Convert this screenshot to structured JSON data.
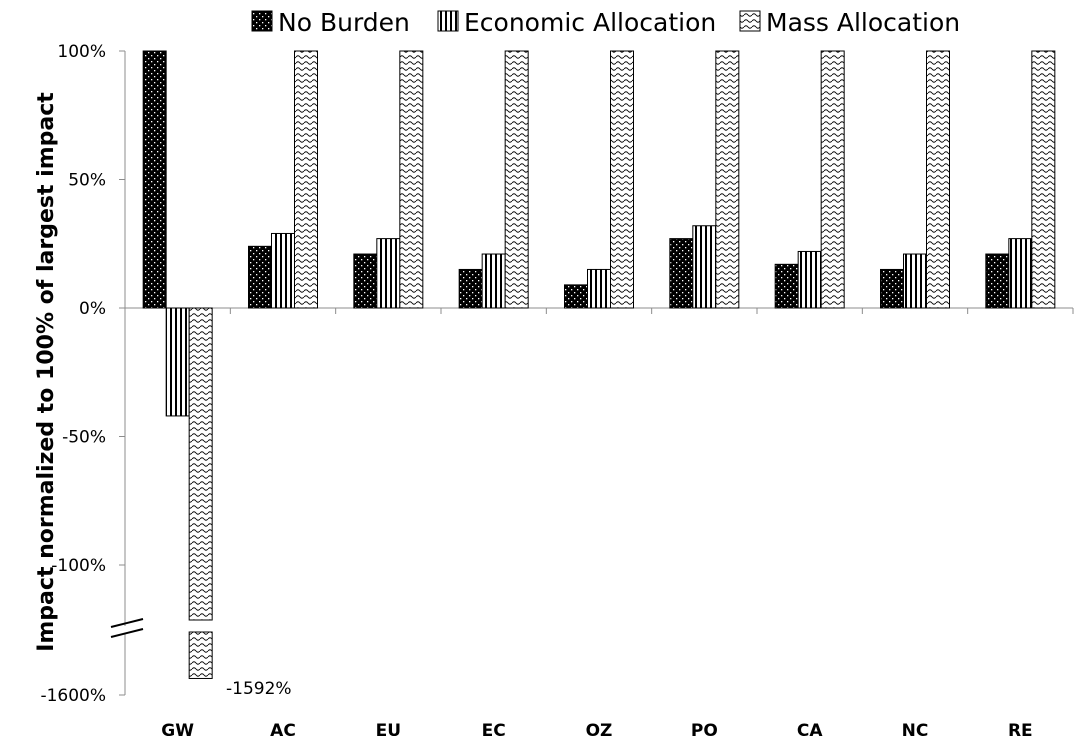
{
  "chart_data": {
    "type": "bar",
    "ylabel": "Impact normalized to 100% of largest impact",
    "xlabel": "",
    "categories": [
      "GW",
      "AC",
      "EU",
      "EC",
      "OZ",
      "PO",
      "CA",
      "NC",
      "RE"
    ],
    "series": [
      {
        "name": "No Burden",
        "pattern": "dots",
        "values": [
          100,
          24,
          21,
          15,
          9,
          27,
          17,
          15,
          21
        ]
      },
      {
        "name": "Economic Allocation",
        "pattern": "vertical-lines",
        "values": [
          -42,
          29,
          27,
          21,
          15,
          32,
          22,
          21,
          27
        ]
      },
      {
        "name": "Mass Allocation",
        "pattern": "waves",
        "values": [
          -1592,
          100,
          100,
          100,
          100,
          100,
          100,
          100,
          100
        ]
      }
    ],
    "yticks": [
      "100%",
      "50%",
      "0%",
      "-50%",
      "-100%",
      "-1600%"
    ],
    "ylim": [
      -1600,
      100
    ],
    "axis_break": {
      "between": [
        -130,
        -1570
      ]
    },
    "data_labels": [
      {
        "category": "GW",
        "series": "Mass Allocation",
        "text": "-1592%"
      }
    ],
    "legend_position": "top",
    "grid": false
  }
}
